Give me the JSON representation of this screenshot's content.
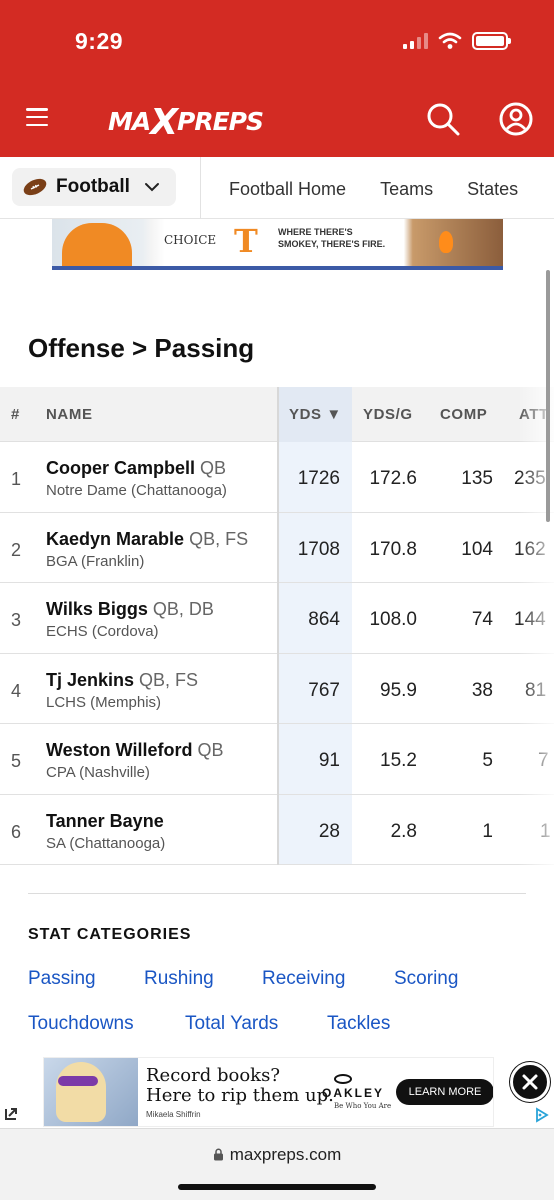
{
  "status_bar": {
    "time": "9:29"
  },
  "header": {
    "logo_text": "MAXPREPS",
    "menu_icon": "hamburger-icon",
    "search_icon": "search-icon",
    "account_icon": "account-icon",
    "brand_color": "#d32b23"
  },
  "subnav": {
    "sport": "Football",
    "links": [
      "Football Home",
      "Teams",
      "States"
    ]
  },
  "ad_top": {
    "brand": "CHOICE",
    "slogan_line1": "WHERE THERE'S",
    "slogan_line2": "SMOKEY, THERE'S FIRE."
  },
  "page_title": "Offense > Passing",
  "table": {
    "headers": {
      "rank": "#",
      "name": "NAME",
      "yds": "YDS ▼",
      "ydsg": "YDS/G",
      "comp": "COMP",
      "att": "ATT"
    },
    "rows": [
      {
        "rank": "1",
        "name": "Cooper Campbell",
        "pos": "QB",
        "school": "Notre Dame (Chattanooga)",
        "yds": "1726",
        "ydsg": "172.6",
        "comp": "135",
        "att": "235"
      },
      {
        "rank": "2",
        "name": "Kaedyn Marable",
        "pos": "QB, FS",
        "school": "BGA (Franklin)",
        "yds": "1708",
        "ydsg": "170.8",
        "comp": "104",
        "att": "162"
      },
      {
        "rank": "3",
        "name": "Wilks Biggs",
        "pos": "QB, DB",
        "school": "ECHS (Cordova)",
        "yds": "864",
        "ydsg": "108.0",
        "comp": "74",
        "att": "144"
      },
      {
        "rank": "4",
        "name": "Tj Jenkins",
        "pos": "QB, FS",
        "school": "LCHS (Memphis)",
        "yds": "767",
        "ydsg": "95.9",
        "comp": "38",
        "att": "81"
      },
      {
        "rank": "5",
        "name": "Weston Willeford",
        "pos": "QB",
        "school": "CPA (Nashville)",
        "yds": "91",
        "ydsg": "15.2",
        "comp": "5",
        "att": "7"
      },
      {
        "rank": "6",
        "name": "Tanner Bayne",
        "pos": "",
        "school": "SA (Chattanooga)",
        "yds": "28",
        "ydsg": "2.8",
        "comp": "1",
        "att": "1"
      }
    ]
  },
  "stat_categories": {
    "title": "STAT CATEGORIES",
    "links": [
      "Passing",
      "Rushing",
      "Receiving",
      "Scoring",
      "Touchdowns",
      "Total Yards",
      "Tackles"
    ]
  },
  "ad_bottom": {
    "headline_line1": "Record books?",
    "headline_line2": "Here to rip them up.",
    "byline": "Mikaela Shiffrin",
    "brand": "OAKLEY",
    "tagline": "Be Who You Are",
    "cta": "LEARN MORE"
  },
  "browser": {
    "url": "maxpreps.com"
  }
}
